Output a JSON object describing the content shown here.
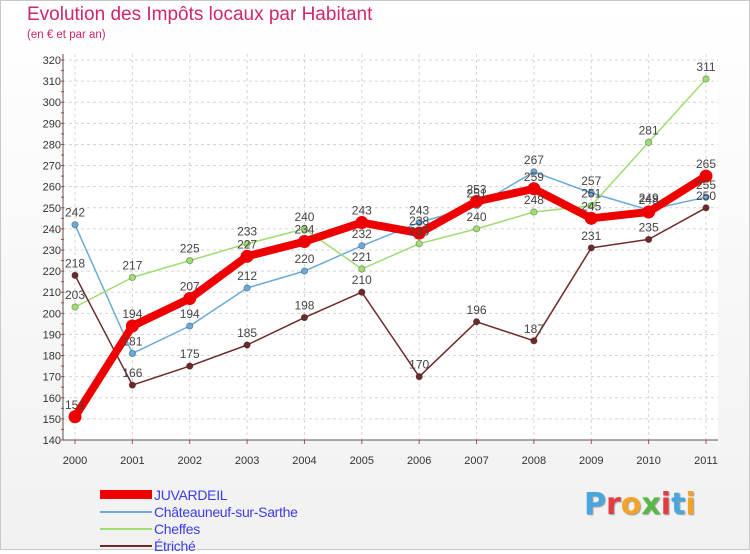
{
  "header": {
    "title": "Evolution des Impôts locaux par Habitant",
    "subtitle": "(en € et par an)"
  },
  "logo": {
    "text": "Proxiti",
    "colors": [
      "#4aa7dd",
      "#e23d3d",
      "#f2a42a",
      "#58b947",
      "#e23d3d",
      "#4aa7dd",
      "#f2a42a"
    ]
  },
  "chart_data": {
    "type": "line",
    "x": [
      2000,
      2001,
      2002,
      2003,
      2004,
      2005,
      2006,
      2007,
      2008,
      2009,
      2010,
      2011
    ],
    "ylim": [
      140,
      320
    ],
    "yticks": [
      140,
      150,
      160,
      170,
      180,
      190,
      200,
      210,
      220,
      230,
      240,
      250,
      260,
      270,
      280,
      290,
      300,
      310,
      320
    ],
    "grid": true,
    "legend_position": "bottom-left",
    "series": [
      {
        "name": "JUVARDEIL",
        "color": "#ee0000",
        "values": [
          151,
          194,
          207,
          227,
          234,
          243,
          238,
          253,
          259,
          245,
          248,
          265
        ]
      },
      {
        "name": "Châteauneuf-sur-Sarthe",
        "color": "#6aaadb",
        "values": [
          242,
          181,
          194,
          212,
          220,
          232,
          243,
          251,
          267,
          257,
          249,
          255
        ]
      },
      {
        "name": "Cheffes",
        "color": "#9fdc72",
        "values": [
          203,
          217,
          225,
          233,
          240,
          221,
          233,
          240,
          248,
          251,
          281,
          311
        ]
      },
      {
        "name": "Étriché",
        "color": "#6e2a2a",
        "values": [
          218,
          166,
          175,
          185,
          198,
          210,
          170,
          196,
          187,
          231,
          235,
          250
        ]
      }
    ]
  }
}
